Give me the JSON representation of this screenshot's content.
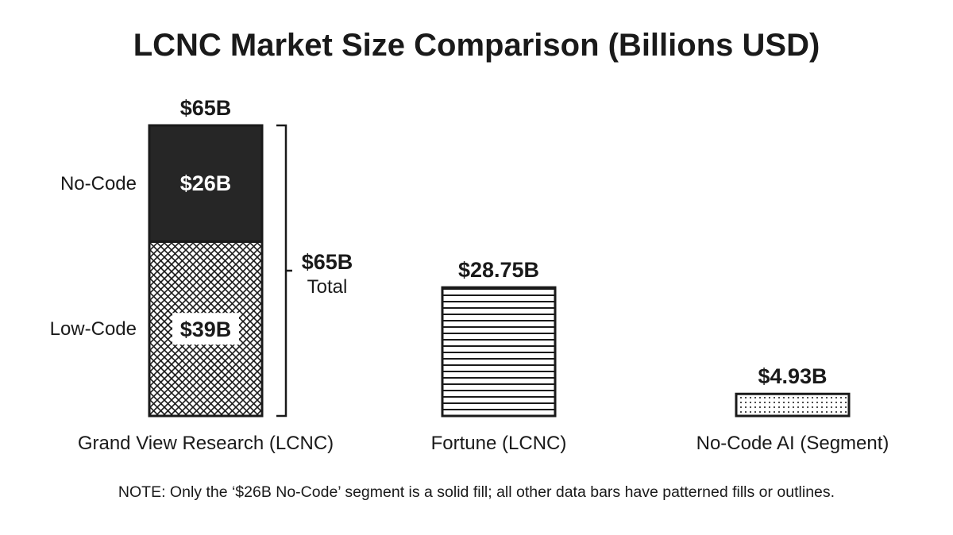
{
  "chart_data": {
    "type": "bar",
    "stacked": true,
    "title": "LCNC Market Size Comparison (Billions USD)",
    "xlabel": "",
    "ylabel": "",
    "ylim": [
      0,
      65
    ],
    "grid": false,
    "legend": "none",
    "categories": [
      "Grand View Research (LCNC)",
      "Fortune (LCNC)",
      "No-Code AI (Segment)"
    ],
    "bars": [
      {
        "category": "Grand View Research (LCNC)",
        "total": 65,
        "total_label": "$65B",
        "segments": [
          {
            "name": "Low-Code",
            "value": 39,
            "label": "$39B",
            "fill": "crosshatch"
          },
          {
            "name": "No-Code",
            "value": 26,
            "label": "$26B",
            "fill": "solid"
          }
        ],
        "bracket": {
          "value_label": "$65B",
          "sub_label": "Total"
        }
      },
      {
        "category": "Fortune (LCNC)",
        "total": 28.75,
        "total_label": "$28.75B",
        "segments": [
          {
            "name": "",
            "value": 28.75,
            "label": "",
            "fill": "horizontal-lines"
          }
        ]
      },
      {
        "category": "No-Code AI (Segment)",
        "total": 4.93,
        "total_label": "$4.93B",
        "segments": [
          {
            "name": "",
            "value": 4.93,
            "label": "",
            "fill": "dots"
          }
        ]
      }
    ],
    "annotation": "NOTE: Only the ‘$26B No-Code’ segment is a solid fill; all other data bars have patterned fills or outlines."
  },
  "colors": {
    "ink": "#1a1a1a",
    "solid_fill": "#262626",
    "background": "#ffffff"
  }
}
